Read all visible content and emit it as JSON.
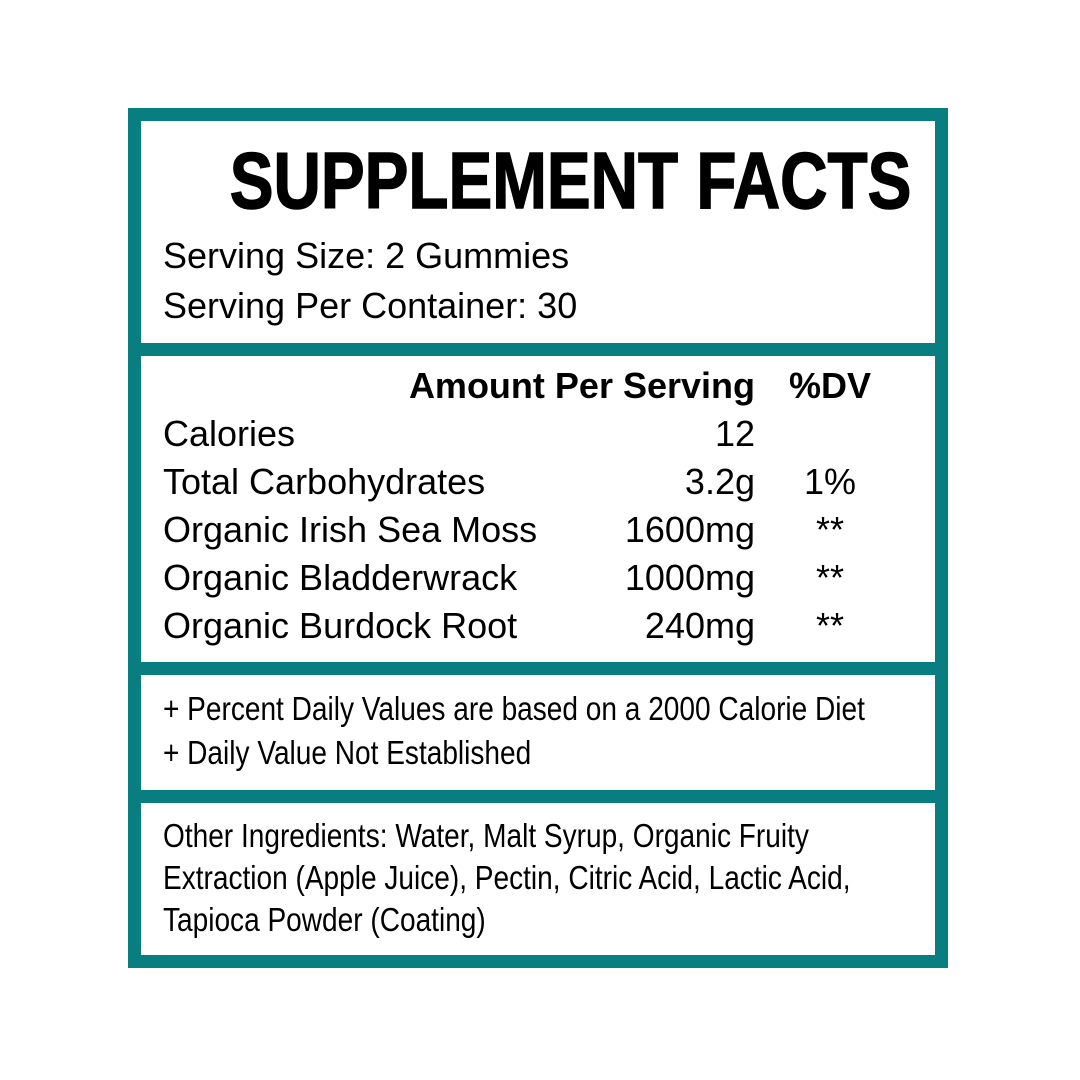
{
  "colors": {
    "border_teal": "#087E80",
    "text": "#000000",
    "background": "#FFFFFF"
  },
  "label": {
    "title": "SUPPLEMENT FACTS",
    "serving_size": "Serving Size: 2 Gummies",
    "servings_per_container": "Serving Per Container: 30",
    "table": {
      "amount_header": "Amount Per Serving",
      "dv_header": "%DV",
      "rows": [
        {
          "name": "Calories",
          "amount": "12",
          "dv": ""
        },
        {
          "name": "Total Carbohydrates",
          "amount": "3.2g",
          "dv": "1%"
        },
        {
          "name": "Organic Irish Sea Moss",
          "amount": "1600mg",
          "dv": "**"
        },
        {
          "name": "Organic Bladderwrack",
          "amount": "1000mg",
          "dv": "**"
        },
        {
          "name": "Organic Burdock Root",
          "amount": "240mg",
          "dv": "**"
        }
      ]
    },
    "footnotes": [
      "+ Percent Daily Values are based on a 2000 Calorie Diet",
      "+ Daily Value Not Established"
    ],
    "other_ingredients_lines": [
      "Other Ingredients: Water, Malt Syrup, Organic Fruity",
      "Extraction (Apple Juice), Pectin, Citric Acid, Lactic Acid,",
      "Tapioca Powder (Coating)"
    ]
  }
}
